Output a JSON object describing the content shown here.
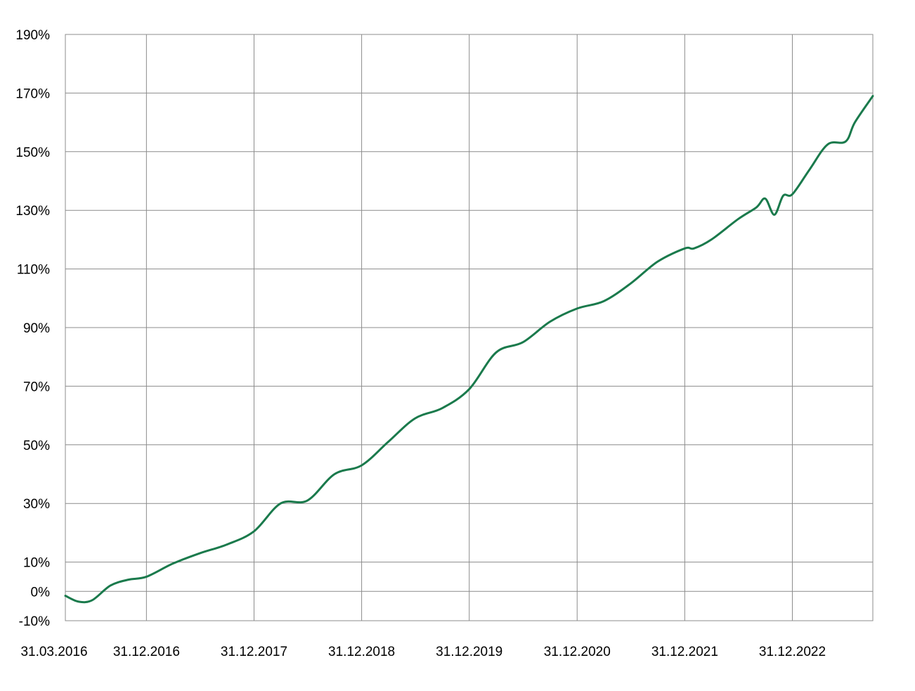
{
  "chart_data": {
    "type": "line",
    "title": "",
    "xlabel": "",
    "ylabel": "",
    "x_tick_labels": [
      "31.03.2016",
      "31.12.2016",
      "31.12.2017",
      "31.12.2018",
      "31.12.2019",
      "31.12.2020",
      "31.12.2021",
      "31.12.2022"
    ],
    "y_tick_labels": [
      "190%",
      "170%",
      "150%",
      "130%",
      "110%",
      "90%",
      "70%",
      "50%",
      "30%",
      "10%",
      "0%",
      "-10%"
    ],
    "y_ticks": [
      190,
      170,
      150,
      130,
      110,
      90,
      70,
      50,
      30,
      10,
      0,
      -10
    ],
    "ylim": [
      -10,
      190
    ],
    "xlim": [
      "2016-03-31",
      "2023-09-30"
    ],
    "grid": true,
    "legend": "none",
    "series": [
      {
        "color": "#1a7a4c",
        "x": [
          "2016-03-31",
          "2016-05-15",
          "2016-06-30",
          "2016-08-31",
          "2016-10-31",
          "2016-12-31",
          "2017-03-31",
          "2017-06-30",
          "2017-09-30",
          "2017-12-31",
          "2018-03-31",
          "2018-06-30",
          "2018-09-30",
          "2018-12-31",
          "2019-03-31",
          "2019-06-30",
          "2019-09-30",
          "2019-12-31",
          "2020-03-31",
          "2020-06-30",
          "2020-09-30",
          "2020-12-31",
          "2021-03-31",
          "2021-06-30",
          "2021-09-30",
          "2021-12-31",
          "2022-01-31",
          "2022-03-31",
          "2022-06-30",
          "2022-08-31",
          "2022-09-30",
          "2022-10-31",
          "2022-11-30",
          "2022-12-31",
          "2023-02-28",
          "2023-04-30",
          "2023-06-30",
          "2023-07-31",
          "2023-09-30"
        ],
        "y": [
          -1.5,
          -3.5,
          -3,
          2,
          4,
          5,
          9.5,
          13,
          16,
          20.5,
          30,
          31,
          40,
          43,
          51,
          59,
          62.5,
          69,
          81.5,
          85,
          92,
          96.5,
          99,
          105,
          112.5,
          117,
          117,
          120,
          127,
          131,
          134,
          128.5,
          135,
          135.5,
          144,
          152.5,
          153.5,
          160,
          169
        ]
      }
    ]
  }
}
